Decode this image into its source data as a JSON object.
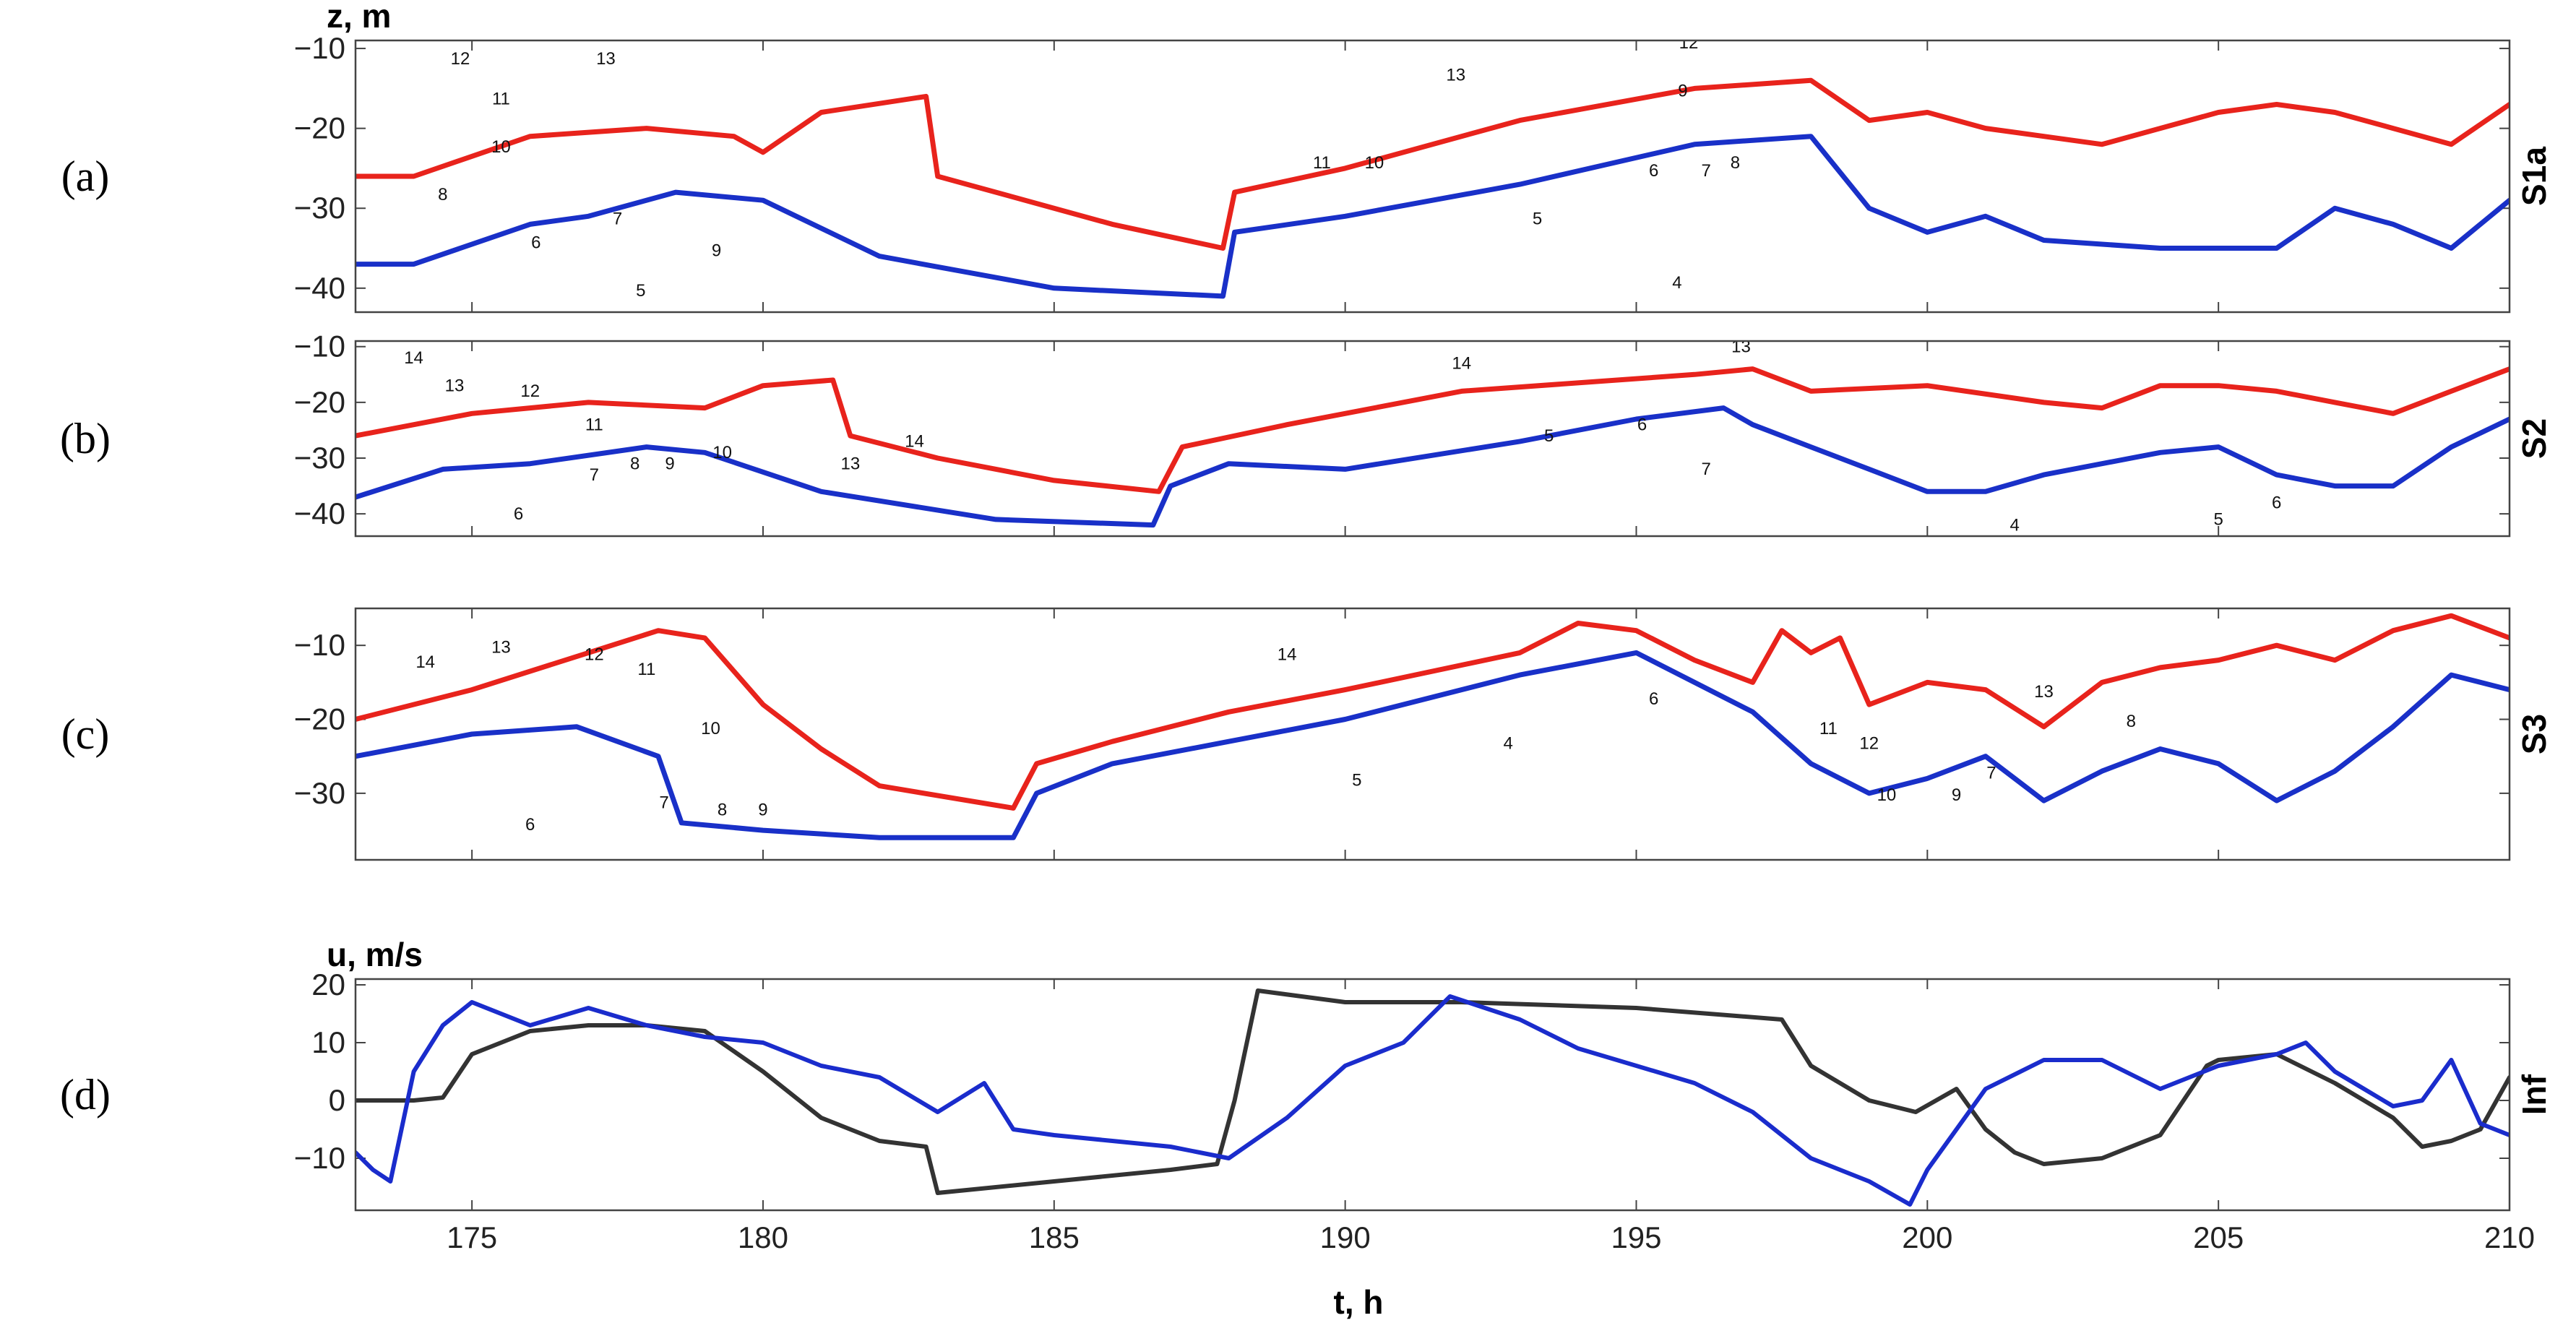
{
  "chart_data": {
    "type": "line",
    "x_label": "t, h",
    "x_range": [
      173,
      210
    ],
    "x_ticks": [
      175,
      180,
      185,
      190,
      195,
      200,
      205,
      210
    ],
    "panels": [
      {
        "tag": "(a)",
        "station": "S1a",
        "ylabel": "z, m",
        "y_range": [
          -43,
          -9
        ],
        "y_ticks": [
          -10,
          -20,
          -30,
          -40
        ],
        "series": [
          {
            "name": "upper boundary",
            "color": "#e8231c",
            "x": [
              173,
              174,
              176,
              178,
              179.5,
              180,
              181,
              182.8,
              183,
              186,
              187.9,
              188.1,
              190,
              193,
              196,
              198,
              199,
              200,
              201,
              202,
              203,
              204,
              205,
              206,
              207,
              208,
              209,
              210
            ],
            "y": [
              -26,
              -26,
              -21,
              -20,
              -21,
              -23,
              -18,
              -16,
              -26,
              -32,
              -35,
              -28,
              -25,
              -19,
              -15,
              -14,
              -19,
              -18,
              -20,
              -21,
              -22,
              -20,
              -18,
              -17,
              -18,
              -20,
              -22,
              -17
            ]
          },
          {
            "name": "lower boundary",
            "color": "#1930c8",
            "x": [
              173,
              174,
              176,
              177,
              178.5,
              180,
              182,
              185,
              187.9,
              188.1,
              190,
              193,
              196,
              198,
              199,
              200,
              201,
              202,
              204,
              206,
              207,
              208,
              209,
              210
            ],
            "y": [
              -37,
              -37,
              -32,
              -31,
              -28,
              -29,
              -36,
              -40,
              -41,
              -33,
              -31,
              -27,
              -22,
              -21,
              -30,
              -33,
              -31,
              -34,
              -35,
              -35,
              -30,
              -32,
              -35,
              -29
            ]
          }
        ],
        "labels": [
          {
            "text": "12",
            "x": 174.8,
            "y": -12
          },
          {
            "text": "13",
            "x": 177.3,
            "y": -12
          },
          {
            "text": "11",
            "x": 175.5,
            "y": -17
          },
          {
            "text": "10",
            "x": 175.5,
            "y": -23
          },
          {
            "text": "8",
            "x": 174.5,
            "y": -29
          },
          {
            "text": "7",
            "x": 177.5,
            "y": -32
          },
          {
            "text": "6",
            "x": 176.1,
            "y": -35
          },
          {
            "text": "9",
            "x": 179.2,
            "y": -36
          },
          {
            "text": "5",
            "x": 177.9,
            "y": -41
          },
          {
            "text": "11",
            "x": 189.6,
            "y": -25
          },
          {
            "text": "10",
            "x": 190.5,
            "y": -25
          },
          {
            "text": "13",
            "x": 191.9,
            "y": -14
          },
          {
            "text": "12",
            "x": 195.9,
            "y": -10
          },
          {
            "text": "9",
            "x": 195.8,
            "y": -16
          },
          {
            "text": "6",
            "x": 195.3,
            "y": -26
          },
          {
            "text": "7",
            "x": 196.2,
            "y": -26
          },
          {
            "text": "8",
            "x": 196.7,
            "y": -25
          },
          {
            "text": "5",
            "x": 193.3,
            "y": -32
          },
          {
            "text": "4",
            "x": 195.7,
            "y": -40
          }
        ]
      },
      {
        "tag": "(b)",
        "station": "S2",
        "ylabel": "",
        "y_range": [
          -44,
          -9
        ],
        "y_ticks": [
          -10,
          -20,
          -30,
          -40
        ],
        "series": [
          {
            "name": "upper boundary",
            "color": "#e8231c",
            "x": [
              173,
              175,
              177,
              179,
              180,
              181.2,
              181.5,
              183,
              185,
              186.8,
              187.2,
              189,
              192,
              196,
              197,
              198,
              200,
              202,
              203,
              204,
              205,
              206,
              207,
              208,
              209,
              210
            ],
            "y": [
              -26,
              -22,
              -20,
              -21,
              -17,
              -16,
              -26,
              -30,
              -34,
              -36,
              -28,
              -24,
              -18,
              -15,
              -14,
              -18,
              -17,
              -20,
              -21,
              -17,
              -17,
              -18,
              -20,
              -22,
              -18,
              -14
            ]
          },
          {
            "name": "lower boundary",
            "color": "#1930c8",
            "x": [
              173,
              174.5,
              176,
              178,
              179,
              181,
              184,
              186.7,
              187,
              188,
              190,
              193,
              195,
              196.5,
              197,
              198,
              199,
              200,
              201,
              202,
              204,
              205,
              206,
              207,
              208,
              209,
              210
            ],
            "y": [
              -37,
              -32,
              -31,
              -28,
              -29,
              -36,
              -41,
              -42,
              -35,
              -31,
              -32,
              -27,
              -23,
              -21,
              -24,
              -28,
              -32,
              -36,
              -36,
              -33,
              -29,
              -28,
              -33,
              -35,
              -35,
              -28,
              -23
            ]
          }
        ],
        "labels": [
          {
            "text": "14",
            "x": 174,
            "y": -13
          },
          {
            "text": "13",
            "x": 174.7,
            "y": -18
          },
          {
            "text": "12",
            "x": 176,
            "y": -19
          },
          {
            "text": "11",
            "x": 177.1,
            "y": -25
          },
          {
            "text": "10",
            "x": 179.3,
            "y": -30
          },
          {
            "text": "9",
            "x": 178.4,
            "y": -32
          },
          {
            "text": "8",
            "x": 177.8,
            "y": -32
          },
          {
            "text": "7",
            "x": 177.1,
            "y": -34
          },
          {
            "text": "6",
            "x": 175.8,
            "y": -41
          },
          {
            "text": "14",
            "x": 182.6,
            "y": -28
          },
          {
            "text": "13",
            "x": 181.5,
            "y": -32
          },
          {
            "text": "14",
            "x": 192,
            "y": -14
          },
          {
            "text": "13",
            "x": 196.8,
            "y": -11
          },
          {
            "text": "6",
            "x": 195.1,
            "y": -25
          },
          {
            "text": "7",
            "x": 196.2,
            "y": -33
          },
          {
            "text": "5",
            "x": 193.5,
            "y": -27
          },
          {
            "text": "6",
            "x": 206,
            "y": -39
          },
          {
            "text": "4",
            "x": 201.5,
            "y": -43
          },
          {
            "text": "5",
            "x": 205,
            "y": -42
          }
        ]
      },
      {
        "tag": "(c)",
        "station": "S3",
        "ylabel": "",
        "y_range": [
          -39,
          -5
        ],
        "y_ticks": [
          -10,
          -20,
          -30
        ],
        "series": [
          {
            "name": "upper boundary",
            "color": "#e8231c",
            "x": [
              173,
              175,
              177,
              178.2,
              179,
              180,
              181,
              182,
              184.3,
              184.7,
              186,
              188,
              190,
              193,
              194,
              195,
              196,
              197,
              197.5,
              198,
              198.5,
              199,
              200,
              201,
              202,
              203,
              204,
              205,
              206,
              207,
              208,
              209,
              210
            ],
            "y": [
              -20,
              -16,
              -11,
              -8,
              -9,
              -18,
              -24,
              -29,
              -32,
              -26,
              -23,
              -19,
              -16,
              -11,
              -7,
              -8,
              -12,
              -15,
              -8,
              -11,
              -9,
              -18,
              -15,
              -16,
              -21,
              -15,
              -13,
              -12,
              -10,
              -12,
              -8,
              -6,
              -9
            ]
          },
          {
            "name": "lower boundary",
            "color": "#1930c8",
            "x": [
              173,
              175,
              176.8,
              178.2,
              178.6,
              180,
              182,
              184.3,
              184.7,
              186,
              188,
              190,
              193,
              195,
              196,
              197,
              198,
              199,
              200,
              201,
              202,
              203,
              204,
              205,
              206,
              207,
              208,
              209,
              210
            ],
            "y": [
              -25,
              -22,
              -21,
              -25,
              -34,
              -35,
              -36,
              -36,
              -30,
              -26,
              -23,
              -20,
              -14,
              -11,
              -15,
              -19,
              -26,
              -30,
              -28,
              -25,
              -31,
              -27,
              -24,
              -26,
              -31,
              -27,
              -21,
              -14,
              -16
            ]
          }
        ],
        "labels": [
          {
            "text": "14",
            "x": 174.2,
            "y": -13
          },
          {
            "text": "13",
            "x": 175.5,
            "y": -11
          },
          {
            "text": "12",
            "x": 177.1,
            "y": -12
          },
          {
            "text": "11",
            "x": 178,
            "y": -14
          },
          {
            "text": "10",
            "x": 179.1,
            "y": -22
          },
          {
            "text": "9",
            "x": 180,
            "y": -33
          },
          {
            "text": "8",
            "x": 179.3,
            "y": -33
          },
          {
            "text": "7",
            "x": 178.3,
            "y": -32
          },
          {
            "text": "6",
            "x": 176,
            "y": -35
          },
          {
            "text": "14",
            "x": 189,
            "y": -12
          },
          {
            "text": "5",
            "x": 190.2,
            "y": -29
          },
          {
            "text": "4",
            "x": 192.8,
            "y": -24
          },
          {
            "text": "6",
            "x": 195.3,
            "y": -18
          },
          {
            "text": "11",
            "x": 198.3,
            "y": -22
          },
          {
            "text": "12",
            "x": 199,
            "y": -24
          },
          {
            "text": "10",
            "x": 199.3,
            "y": -31
          },
          {
            "text": "9",
            "x": 200.5,
            "y": -31
          },
          {
            "text": "7",
            "x": 201.1,
            "y": -28
          },
          {
            "text": "13",
            "x": 202,
            "y": -17
          },
          {
            "text": "8",
            "x": 203.5,
            "y": -21
          }
        ]
      },
      {
        "tag": "(d)",
        "station": "Inf",
        "ylabel": "u, m/s",
        "y_range": [
          -19,
          21
        ],
        "y_ticks": [
          20,
          10,
          0,
          -10
        ],
        "series": [
          {
            "name": "wind (black)",
            "color": "#333333",
            "x": [
              173,
              174,
              174.5,
              175,
              176,
              177,
              178,
              179,
              180,
              181,
              182,
              182.8,
              183,
              185,
              187,
              187.8,
              188.1,
              188.5,
              190,
              192,
              195,
              197.5,
              198,
              199,
              199.8,
              200.5,
              201,
              201.5,
              202,
              203,
              204,
              204.8,
              205,
              206,
              207,
              208,
              208.5,
              209,
              209.5,
              210
            ],
            "y": [
              0,
              0,
              0.5,
              8,
              12,
              13,
              13,
              12,
              5,
              -3,
              -7,
              -8,
              -16,
              -14,
              -12,
              -11,
              0,
              19,
              17,
              17,
              16,
              14,
              6,
              0,
              -2,
              2,
              -5,
              -9,
              -11,
              -10,
              -6,
              6,
              7,
              8,
              3,
              -3,
              -8,
              -7,
              -5,
              4
            ]
          },
          {
            "name": "wind (blue)",
            "color": "#1a2ccc",
            "x": [
              173,
              173.3,
              173.6,
              174,
              174.5,
              175,
              176,
              177,
              178,
              179,
              180,
              181,
              182,
              183,
              183.8,
              184.3,
              185,
              186,
              187,
              187.5,
              188,
              189,
              190,
              191,
              191.8,
              193,
              194,
              195,
              196,
              197,
              198,
              199,
              199.7,
              200,
              200.5,
              201,
              202,
              203,
              204,
              205,
              206,
              206.5,
              207,
              207.5,
              208,
              208.5,
              209,
              209.5,
              210
            ],
            "y": [
              -9,
              -12,
              -14,
              5,
              13,
              17,
              13,
              16,
              13,
              11,
              10,
              6,
              4,
              -2,
              3,
              -5,
              -6,
              -7,
              -8,
              -9,
              -10,
              -3,
              6,
              10,
              18,
              14,
              9,
              6,
              3,
              -2,
              -10,
              -14,
              -18,
              -12,
              -5,
              2,
              7,
              7,
              2,
              6,
              8,
              10,
              5,
              2,
              -1,
              0,
              7,
              -4,
              -6
            ]
          }
        ],
        "labels": []
      }
    ]
  }
}
